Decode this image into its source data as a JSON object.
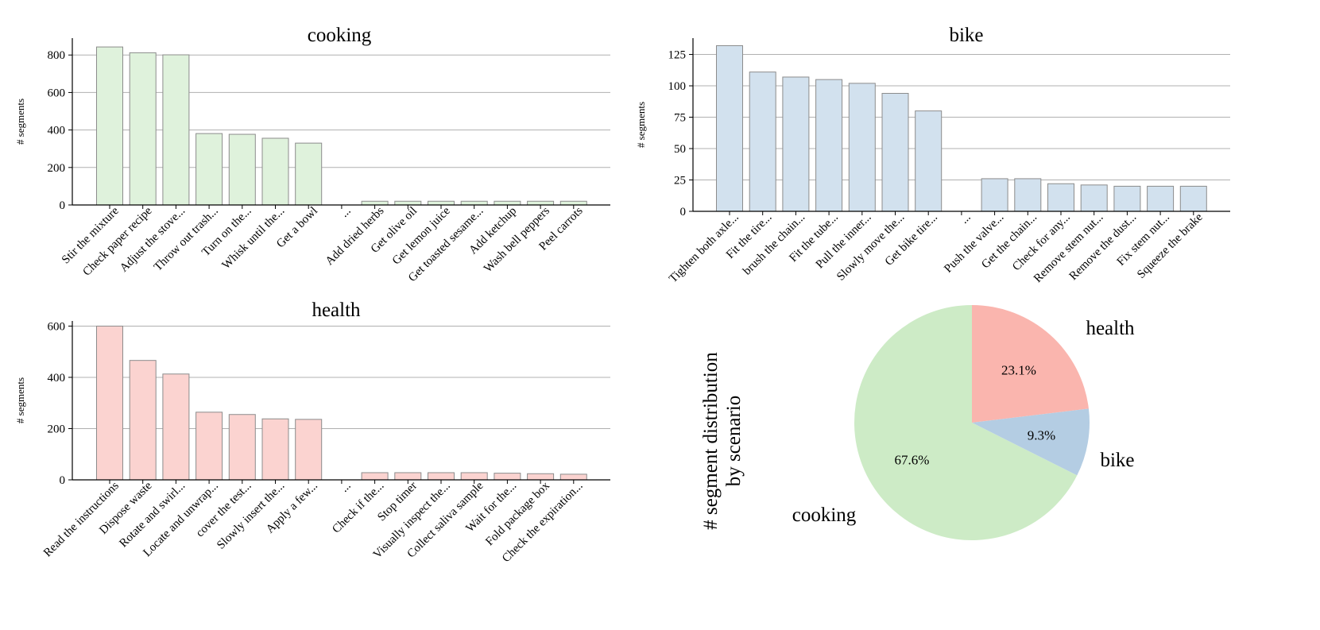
{
  "chart_data": [
    {
      "type": "bar",
      "title": "cooking",
      "ylabel": "# segments",
      "xlabel": "",
      "ylim": [
        0,
        890
      ],
      "yticks": [
        0,
        200,
        400,
        600,
        800
      ],
      "grid": true,
      "color": "#dff2dc",
      "categories": [
        "Stir the mixture",
        "Check paper recipe",
        "Adjust the stove...",
        "Throw out trash...",
        "Turn on the...",
        "Whisk until the...",
        "Get a bowl",
        "...",
        "Add dried herbs",
        "Get olive oil",
        "Get lemon juice",
        "Get toasted sesame...",
        "Add ketchup",
        "Wash bell peppers",
        "Peel carrots"
      ],
      "values": [
        843,
        812,
        801,
        381,
        377,
        356,
        330,
        null,
        20,
        20,
        20,
        20,
        20,
        20,
        20
      ]
    },
    {
      "type": "bar",
      "title": "bike",
      "ylabel": "# segments",
      "xlabel": "",
      "ylim": [
        0,
        138
      ],
      "yticks": [
        0,
        25,
        50,
        75,
        100,
        125
      ],
      "grid": true,
      "color": "#d2e1ee",
      "categories": [
        "Tighten both axle...",
        "Fit the tire...",
        "brush the chain...",
        "Fit the tube...",
        "Pull the inner...",
        "Slowly move the...",
        "Get bike tire...",
        "...",
        "Push the valve...",
        "Get the chain...",
        "Check for any...",
        "Remove stem nut...",
        "Remove the dust...",
        "Fix stem nut...",
        "Squeeze the brake"
      ],
      "values": [
        132,
        111,
        107,
        105,
        102,
        94,
        80,
        null,
        26,
        26,
        22,
        21,
        20,
        20,
        20
      ]
    },
    {
      "type": "bar",
      "title": "health",
      "ylabel": "# segments",
      "xlabel": "",
      "ylim": [
        0,
        620
      ],
      "yticks": [
        0,
        200,
        400,
        600
      ],
      "grid": true,
      "color": "#fbd3d0",
      "categories": [
        "Read the instructions",
        "Dispose waste",
        "Rotate and swirl...",
        "Locate and unwrap...",
        "cover the test...",
        "Slowly insert the...",
        "Apply a few...",
        "...",
        "Check if the...",
        "Stop timer",
        "Visually inspect the...",
        "Collect saliva sample",
        "Wait for the...",
        "Fold package box",
        "Check the expiration..."
      ],
      "values": [
        600,
        466,
        413,
        264,
        255,
        238,
        236,
        null,
        28,
        28,
        28,
        28,
        26,
        24,
        22
      ]
    },
    {
      "type": "pie",
      "title": "# segment distribution by scenario",
      "title_lines": [
        "# segment distribution",
        "by scenario"
      ],
      "labels": [
        "health",
        "bike",
        "cooking"
      ],
      "values": [
        23.1,
        9.3,
        67.6
      ],
      "pct_labels": [
        "23.1%",
        "9.3%",
        "67.6%"
      ],
      "colors": [
        "#fab5ae",
        "#b4cde3",
        "#cdebc6"
      ]
    }
  ]
}
